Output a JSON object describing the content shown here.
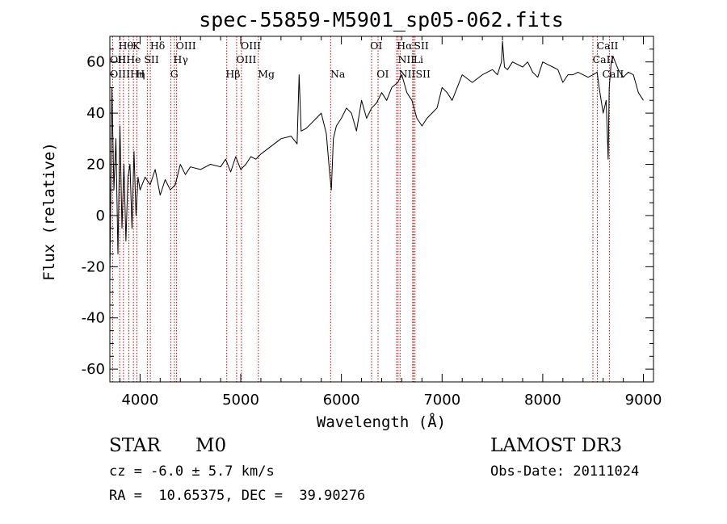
{
  "chart_data": {
    "type": "line",
    "title": "spec-55859-M5901_sp05-062.fits",
    "xlabel": "Wavelength (Å)",
    "ylabel": "Flux (relative)",
    "xlim": [
      3700,
      9100
    ],
    "ylim": [
      -65,
      70
    ],
    "xticks": [
      4000,
      5000,
      6000,
      7000,
      8000,
      9000
    ],
    "yticks": [
      -60,
      -40,
      -20,
      0,
      20,
      40,
      60
    ],
    "series": [
      {
        "name": "spectrum",
        "x": [
          3700,
          3720,
          3740,
          3760,
          3780,
          3800,
          3820,
          3840,
          3860,
          3880,
          3900,
          3920,
          3940,
          3960,
          3980,
          4000,
          4050,
          4100,
          4150,
          4200,
          4250,
          4300,
          4350,
          4400,
          4450,
          4500,
          4600,
          4700,
          4800,
          4850,
          4900,
          4950,
          5000,
          5050,
          5100,
          5150,
          5200,
          5300,
          5400,
          5500,
          5560,
          5580,
          5600,
          5650,
          5700,
          5750,
          5800,
          5850,
          5880,
          5900,
          5920,
          5950,
          6000,
          6050,
          6100,
          6150,
          6200,
          6250,
          6300,
          6350,
          6400,
          6450,
          6500,
          6560,
          6600,
          6650,
          6700,
          6750,
          6800,
          6850,
          6900,
          6950,
          7000,
          7050,
          7100,
          7150,
          7200,
          7300,
          7400,
          7500,
          7550,
          7590,
          7600,
          7620,
          7650,
          7700,
          7800,
          7850,
          7900,
          7950,
          8000,
          8050,
          8100,
          8150,
          8200,
          8250,
          8300,
          8350,
          8400,
          8450,
          8500,
          8540,
          8560,
          8600,
          8630,
          8650,
          8660,
          8680,
          8700,
          8750,
          8800,
          8850,
          8900,
          8950,
          9000
        ],
        "values": [
          -25,
          50,
          10,
          30,
          -15,
          35,
          -5,
          20,
          -10,
          15,
          20,
          -5,
          25,
          0,
          15,
          10,
          15,
          12,
          18,
          8,
          14,
          10,
          12,
          20,
          16,
          19,
          18,
          20,
          19,
          22,
          17,
          23,
          18,
          20,
          23,
          22,
          24,
          27,
          30,
          31,
          28,
          55,
          33,
          34,
          36,
          38,
          40,
          32,
          18,
          10,
          30,
          35,
          38,
          42,
          40,
          33,
          45,
          38,
          42,
          44,
          48,
          45,
          50,
          52,
          55,
          48,
          45,
          38,
          35,
          38,
          40,
          42,
          50,
          48,
          45,
          50,
          55,
          52,
          55,
          57,
          55,
          60,
          68,
          58,
          57,
          60,
          58,
          60,
          56,
          54,
          60,
          59,
          58,
          57,
          52,
          55,
          55,
          56,
          55,
          54,
          55,
          56,
          50,
          40,
          45,
          22,
          50,
          60,
          62,
          57,
          54,
          56,
          55,
          48,
          45
        ]
      }
    ],
    "lines": [
      {
        "name": "OII",
        "x": 3727
      },
      {
        "name": "Hθ",
        "x": 3798
      },
      {
        "name": "Hη",
        "x": 3835
      },
      {
        "name": "He",
        "x": 3889
      },
      {
        "name": "K",
        "x": 3934
      },
      {
        "name": "H",
        "x": 3968
      },
      {
        "name": "SII",
        "x": 4072
      },
      {
        "name": "Hδ",
        "x": 4102
      },
      {
        "name": "G",
        "x": 4305
      },
      {
        "name": "Hγ",
        "x": 4341
      },
      {
        "name": "OIII",
        "x": 4363
      },
      {
        "name": "Hβ",
        "x": 4861
      },
      {
        "name": "OIII",
        "x": 4959
      },
      {
        "name": "OIII",
        "x": 5007
      },
      {
        "name": "Mg",
        "x": 5175
      },
      {
        "name": "Na",
        "x": 5893
      },
      {
        "name": "OI",
        "x": 6300
      },
      {
        "name": "OI",
        "x": 6364
      },
      {
        "name": "NII",
        "x": 6548
      },
      {
        "name": "Hα",
        "x": 6563
      },
      {
        "name": "NII",
        "x": 6583
      },
      {
        "name": "Li",
        "x": 6708
      },
      {
        "name": "SII",
        "x": 6716
      },
      {
        "name": "SII",
        "x": 6731
      },
      {
        "name": "CaII",
        "x": 8498
      },
      {
        "name": "CaII",
        "x": 8542
      },
      {
        "name": "CaII",
        "x": 8662
      }
    ],
    "line_labels": [
      {
        "text": "Hθ",
        "x": 3785,
        "row": 0
      },
      {
        "text": "K",
        "x": 3925,
        "row": 0
      },
      {
        "text": "Hδ",
        "x": 4100,
        "row": 0
      },
      {
        "text": "OIII",
        "x": 4355,
        "row": 0
      },
      {
        "text": "OIII",
        "x": 5000,
        "row": 0
      },
      {
        "text": "OI",
        "x": 6285,
        "row": 0
      },
      {
        "text": "Hα",
        "x": 6550,
        "row": 0
      },
      {
        "text": "SII",
        "x": 6720,
        "row": 0
      },
      {
        "text": "CaII",
        "x": 8535,
        "row": 0
      },
      {
        "text": "OII",
        "x": 3700,
        "row": 1
      },
      {
        "text": "HHe",
        "x": 3775,
        "row": 1
      },
      {
        "text": "SII",
        "x": 4040,
        "row": 1
      },
      {
        "text": "Hγ",
        "x": 4330,
        "row": 1
      },
      {
        "text": "OIII",
        "x": 4955,
        "row": 1
      },
      {
        "text": "NII",
        "x": 6560,
        "row": 1
      },
      {
        "text": "Li",
        "x": 6715,
        "row": 1
      },
      {
        "text": "CaII",
        "x": 8495,
        "row": 1
      },
      {
        "text": "OIIIHη",
        "x": 3700,
        "row": 2
      },
      {
        "text": "H",
        "x": 3960,
        "row": 2
      },
      {
        "text": "G",
        "x": 4300,
        "row": 2
      },
      {
        "text": "Hβ",
        "x": 4850,
        "row": 2
      },
      {
        "text": "Mg",
        "x": 5170,
        "row": 2
      },
      {
        "text": "Na",
        "x": 5890,
        "row": 2
      },
      {
        "text": "OI",
        "x": 6350,
        "row": 2
      },
      {
        "text": "NIISII",
        "x": 6570,
        "row": 2
      },
      {
        "text": "CaII",
        "x": 8590,
        "row": 2
      }
    ]
  },
  "info": {
    "class": "STAR",
    "subclass": "M0",
    "survey": "LAMOST DR3",
    "cz": "cz = -6.0 ± 5.7 km/s",
    "obs_date": "Obs-Date: 20111024",
    "coords": "RA =  10.65375, DEC =  39.90276"
  },
  "colors": {
    "line_marker": "#cc0000",
    "spectrum": "#000000"
  }
}
